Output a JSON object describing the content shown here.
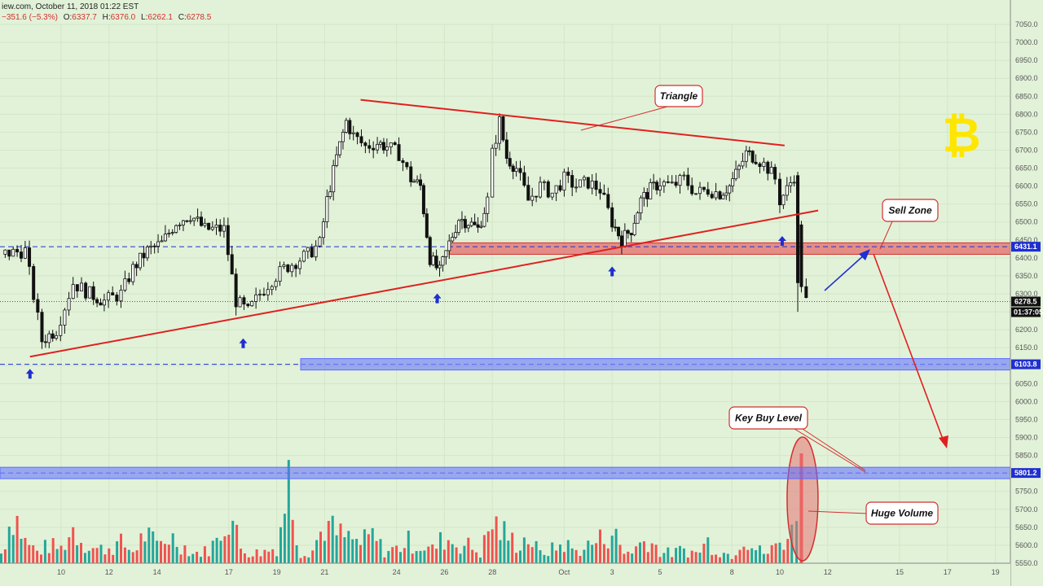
{
  "header": {
    "source_date": "iew.com, October 11, 2018 01:22 EST",
    "change": "−351.6 (−5.3%)",
    "open_label": "O:",
    "open": "6337.7",
    "high_label": "H:",
    "high": "6376.0",
    "low_label": "L:",
    "low": "6262.1",
    "close_label": "C:",
    "close": "6278.5"
  },
  "colors": {
    "background": "#e2f2d8",
    "up": "#ffffff",
    "down": "#111111",
    "vol_up": "#26a69a",
    "vol_down": "#ef5350",
    "trend": "#e02020",
    "level_blue": "#1f2fd0",
    "zone_red": "#e57373",
    "zone_blue": "#5c6bff"
  },
  "chart_data": {
    "type": "candlestick",
    "y_axis": {
      "min": 5550,
      "max": 7050,
      "step": 50,
      "ticks": [
        "7050.0",
        "7000.0",
        "6950.0",
        "6900.0",
        "6850.0",
        "6800.0",
        "6750.0",
        "6700.0",
        "6650.0",
        "6600.0",
        "6550.0",
        "6500.0",
        "6450.0",
        "6400.0",
        "6350.0",
        "6300.0",
        "6250.0",
        "6200.0",
        "6150.0",
        "6100.0",
        "6050.0",
        "6000.0",
        "5950.0",
        "5900.0",
        "5850.0",
        "5800.0",
        "5750.0",
        "5700.0",
        "5650.0",
        "5600.0",
        "5550.0"
      ]
    },
    "x_axis": {
      "ticks": [
        {
          "label": "10",
          "day": 10
        },
        {
          "label": "12",
          "day": 12
        },
        {
          "label": "14",
          "day": 14
        },
        {
          "label": "17",
          "day": 17
        },
        {
          "label": "19",
          "day": 19
        },
        {
          "label": "21",
          "day": 21
        },
        {
          "label": "24",
          "day": 24
        },
        {
          "label": "26",
          "day": 26
        },
        {
          "label": "28",
          "day": 28
        },
        {
          "label": "Oct",
          "day": 31
        },
        {
          "label": "3",
          "day": 33
        },
        {
          "label": "5",
          "day": 35
        },
        {
          "label": "8",
          "day": 38
        },
        {
          "label": "10",
          "day": 40
        },
        {
          "label": "12",
          "day": 42
        },
        {
          "label": "15",
          "day": 45
        },
        {
          "label": "17",
          "day": 47
        },
        {
          "label": "19",
          "day": 49
        }
      ]
    },
    "series_points": [
      [
        7.5,
        6410
      ],
      [
        8.5,
        6420
      ],
      [
        9.2,
        6170
      ],
      [
        9.8,
        6200
      ],
      [
        10.5,
        6330
      ],
      [
        11.2,
        6300
      ],
      [
        11.8,
        6280
      ],
      [
        12.5,
        6300
      ],
      [
        13.0,
        6370
      ],
      [
        13.6,
        6420
      ],
      [
        14.2,
        6440
      ],
      [
        14.8,
        6500
      ],
      [
        15.4,
        6520
      ],
      [
        16.0,
        6480
      ],
      [
        16.8,
        6480
      ],
      [
        17.3,
        6280
      ],
      [
        17.8,
        6250
      ],
      [
        18.3,
        6300
      ],
      [
        18.8,
        6340
      ],
      [
        19.3,
        6370
      ],
      [
        19.8,
        6390
      ],
      [
        20.3,
        6410
      ],
      [
        20.8,
        6440
      ],
      [
        21.1,
        6560
      ],
      [
        21.5,
        6680
      ],
      [
        21.9,
        6780
      ],
      [
        22.2,
        6740
      ],
      [
        22.7,
        6710
      ],
      [
        23.2,
        6720
      ],
      [
        23.6,
        6710
      ],
      [
        24.1,
        6690
      ],
      [
        24.6,
        6620
      ],
      [
        25.0,
        6600
      ],
      [
        25.4,
        6400
      ],
      [
        25.8,
        6360
      ],
      [
        26.2,
        6440
      ],
      [
        26.6,
        6510
      ],
      [
        27.0,
        6500
      ],
      [
        27.4,
        6480
      ],
      [
        27.8,
        6560
      ],
      [
        28.0,
        6690
      ],
      [
        28.3,
        6780
      ],
      [
        28.6,
        6680
      ],
      [
        29.0,
        6650
      ],
      [
        29.5,
        6560
      ],
      [
        30.0,
        6600
      ],
      [
        30.5,
        6580
      ],
      [
        31.0,
        6620
      ],
      [
        31.5,
        6600
      ],
      [
        32.0,
        6610
      ],
      [
        32.5,
        6590
      ],
      [
        33.0,
        6500
      ],
      [
        33.4,
        6450
      ],
      [
        33.8,
        6480
      ],
      [
        34.2,
        6560
      ],
      [
        34.6,
        6590
      ],
      [
        35.0,
        6610
      ],
      [
        35.5,
        6600
      ],
      [
        36.0,
        6620
      ],
      [
        36.5,
        6580
      ],
      [
        37.0,
        6590
      ],
      [
        37.5,
        6580
      ],
      [
        37.9,
        6600
      ],
      [
        38.3,
        6650
      ],
      [
        38.6,
        6690
      ],
      [
        39.0,
        6680
      ],
      [
        39.5,
        6650
      ],
      [
        39.8,
        6620
      ],
      [
        40.0,
        6560
      ],
      [
        40.3,
        6590
      ],
      [
        40.6,
        6630
      ],
      [
        40.9,
        6330
      ],
      [
        41.1,
        6278.5
      ]
    ],
    "volume_points": [
      [
        7.5,
        0.1
      ],
      [
        8.0,
        0.55
      ],
      [
        8.5,
        0.22
      ],
      [
        9.0,
        0.12
      ],
      [
        9.5,
        0.18
      ],
      [
        10.0,
        0.15
      ],
      [
        10.5,
        0.35
      ],
      [
        11.0,
        0.2
      ],
      [
        11.5,
        0.14
      ],
      [
        12.0,
        0.16
      ],
      [
        12.5,
        0.2
      ],
      [
        13.0,
        0.12
      ],
      [
        13.5,
        0.3
      ],
      [
        14.0,
        0.18
      ],
      [
        14.5,
        0.28
      ],
      [
        15.0,
        0.2
      ],
      [
        15.5,
        0.1
      ],
      [
        16.0,
        0.12
      ],
      [
        16.5,
        0.22
      ],
      [
        17.0,
        0.55
      ],
      [
        17.5,
        0.15
      ],
      [
        18.0,
        0.1
      ],
      [
        18.5,
        0.12
      ],
      [
        19.0,
        0.16
      ],
      [
        19.5,
        0.85
      ],
      [
        20.0,
        0.1
      ],
      [
        20.5,
        0.14
      ],
      [
        21.0,
        0.4
      ],
      [
        21.5,
        0.3
      ],
      [
        22.0,
        0.25
      ],
      [
        22.5,
        0.2
      ],
      [
        23.0,
        0.28
      ],
      [
        23.5,
        0.12
      ],
      [
        24.0,
        0.15
      ],
      [
        24.5,
        0.22
      ],
      [
        25.0,
        0.18
      ],
      [
        25.5,
        0.14
      ],
      [
        26.0,
        0.26
      ],
      [
        26.5,
        0.2
      ],
      [
        27.0,
        0.18
      ],
      [
        27.5,
        0.1
      ],
      [
        28.0,
        0.42
      ],
      [
        28.5,
        0.3
      ],
      [
        29.0,
        0.2
      ],
      [
        29.5,
        0.26
      ],
      [
        30.0,
        0.1
      ],
      [
        30.5,
        0.14
      ],
      [
        31.0,
        0.2
      ],
      [
        31.5,
        0.12
      ],
      [
        32.0,
        0.18
      ],
      [
        32.5,
        0.24
      ],
      [
        33.0,
        0.34
      ],
      [
        33.5,
        0.1
      ],
      [
        34.0,
        0.16
      ],
      [
        34.5,
        0.26
      ],
      [
        35.0,
        0.12
      ],
      [
        35.5,
        0.1
      ],
      [
        36.0,
        0.14
      ],
      [
        36.5,
        0.1
      ],
      [
        37.0,
        0.22
      ],
      [
        37.5,
        0.12
      ],
      [
        38.0,
        0.08
      ],
      [
        38.5,
        0.3
      ],
      [
        39.0,
        0.14
      ],
      [
        39.5,
        0.1
      ],
      [
        40.0,
        0.22
      ],
      [
        40.5,
        0.3
      ],
      [
        40.9,
        1.0
      ],
      [
        41.1,
        0.18
      ]
    ],
    "trendlines": [
      {
        "name": "triangle-upper",
        "from": [
          22.5,
          6840
        ],
        "to": [
          40.2,
          6713
        ]
      },
      {
        "name": "triangle-lower",
        "from": [
          8.7,
          6125
        ],
        "to": [
          41.6,
          6532
        ]
      }
    ],
    "levels": [
      {
        "value": 6431.1,
        "label": "6431.1",
        "style": "dashed",
        "color": "#1f2fd0",
        "from_day": 7.0,
        "to_day": 51.0
      },
      {
        "value": 6103.8,
        "label": "6103.8",
        "style": "zone",
        "color": "#5c6bff",
        "from_day": 20.0,
        "to_day": 51.0
      },
      {
        "value": 5801.2,
        "label": "5801.2",
        "style": "zone",
        "color": "#5c6bff",
        "from_day": 7.0,
        "to_day": 51.0
      },
      {
        "value": 6278.5,
        "label": "6278.5",
        "style": "dotted",
        "color": "#222222",
        "from_day": 7.0,
        "to_day": 51.0
      }
    ],
    "zones": [
      {
        "name": "sell-zone",
        "from_day": 26.2,
        "to_day": 51.0,
        "low": 6410,
        "high": 6442
      }
    ],
    "timer_label": "01:37:05",
    "annotations": [
      {
        "text": "Triangle",
        "day": 35.2,
        "price": 6910
      },
      {
        "text": "Sell  Zone",
        "day": 46.8,
        "price": 6520
      },
      {
        "text": "Key Buy Level",
        "day": 38.7,
        "price": 5930
      },
      {
        "text": "Huge Volume",
        "day": 46.7,
        "price": "vol"
      }
    ],
    "support_arrows": [
      {
        "day": 8.7,
        "price": 6100
      },
      {
        "day": 17.6,
        "price": 6185
      },
      {
        "day": 25.7,
        "price": 6310
      },
      {
        "day": 33.0,
        "price": 6385
      },
      {
        "day": 40.1,
        "price": 6470
      }
    ]
  }
}
